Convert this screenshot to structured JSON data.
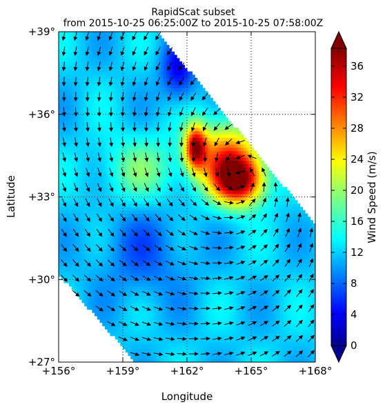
{
  "chart_data": {
    "type": "heatmap",
    "title": "RapidScat subset",
    "subtitle": "from 2015-10-25 06:25:00Z to 2015-10-25 07:58:00Z",
    "xlabel": "Longitude",
    "ylabel": "Latitude",
    "xlim": [
      156,
      168
    ],
    "ylim": [
      27,
      39
    ],
    "x_ticks": [
      156,
      159,
      162,
      165,
      168
    ],
    "y_ticks": [
      27,
      30,
      33,
      36,
      39
    ],
    "x_tick_labels": [
      "+156°",
      "+159°",
      "+162°",
      "+165°",
      "+168°"
    ],
    "y_tick_labels": [
      "+27°",
      "+30°",
      "+33°",
      "+36°",
      "+39°"
    ],
    "grid": true,
    "grid_style": "dotted",
    "colorbar": {
      "label": "Wind Speed (m/s)",
      "range": [
        0,
        40
      ],
      "ticks": [
        0,
        4,
        8,
        12,
        16,
        20,
        24,
        28,
        32,
        36
      ],
      "tick_labels": [
        "0",
        "4",
        "8",
        "12",
        "16",
        "20",
        "24",
        "28",
        "32",
        "36"
      ],
      "colormap": "jet",
      "extend": "both"
    },
    "swath_polygon": [
      [
        156,
        39
      ],
      [
        160.6,
        39
      ],
      [
        168,
        32
      ],
      [
        168,
        27
      ],
      [
        159.6,
        27
      ],
      [
        156,
        30.2
      ]
    ],
    "field": {
      "background_speed": 13,
      "features": [
        {
          "lon": 164.4,
          "lat": 33.6,
          "speed": 38,
          "radius_lon": 1.2,
          "radius_lat": 0.9
        },
        {
          "lon": 162.4,
          "lat": 34.8,
          "speed": 34,
          "radius_lon": 0.5,
          "radius_lat": 0.8
        },
        {
          "lon": 163.8,
          "lat": 34.6,
          "speed": 28,
          "radius_lon": 1.6,
          "radius_lat": 1.2
        },
        {
          "lon": 161.6,
          "lat": 37.6,
          "speed": 5,
          "radius_lon": 0.8,
          "radius_lat": 1.1
        },
        {
          "lon": 159.8,
          "lat": 34.0,
          "speed": 19,
          "radius_lon": 1.8,
          "radius_lat": 1.2
        },
        {
          "lon": 160.0,
          "lat": 31.0,
          "speed": 9,
          "radius_lon": 2.2,
          "radius_lat": 1.8
        }
      ],
      "vector_center": {
        "lon": 164.5,
        "lat": 33.8
      }
    }
  }
}
